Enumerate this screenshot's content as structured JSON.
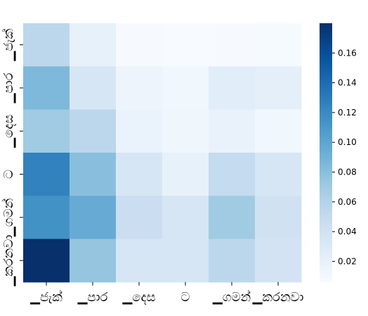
{
  "chart_data": {
    "type": "heatmap",
    "x_labels": [
      "▁ජැක්",
      "▁පාර",
      "▁දෙස",
      "ට",
      "▁ගමන්",
      "▁කරනවා"
    ],
    "y_labels": [
      "▁ජැක්",
      "▁පාර",
      "▁දෙස",
      "ට",
      "▁ගමන්",
      "▁කරනවා"
    ],
    "values": [
      [
        0.055,
        0.02,
        0.007,
        0.005,
        0.007,
        0.008
      ],
      [
        0.085,
        0.035,
        0.015,
        0.012,
        0.025,
        0.022
      ],
      [
        0.07,
        0.055,
        0.017,
        0.013,
        0.018,
        0.012
      ],
      [
        0.125,
        0.08,
        0.035,
        0.02,
        0.05,
        0.035
      ],
      [
        0.115,
        0.095,
        0.045,
        0.035,
        0.07,
        0.04
      ],
      [
        0.18,
        0.075,
        0.035,
        0.035,
        0.055,
        0.038
      ]
    ],
    "colorbar": {
      "min": 0.006,
      "max": 0.18,
      "ticks": [
        "0.02",
        "0.04",
        "0.06",
        "0.08",
        "0.10",
        "0.12",
        "0.14",
        "0.16"
      ],
      "colormap": "Blues"
    },
    "title": "",
    "xlabel": "",
    "ylabel": ""
  }
}
